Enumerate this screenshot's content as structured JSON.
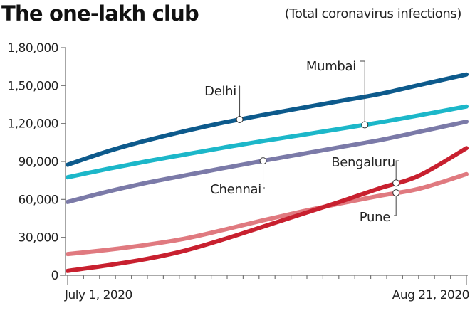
{
  "header": {
    "title": "The one-lakh club",
    "subtitle": "(Total coronavirus infections)"
  },
  "chart_data": {
    "type": "line",
    "title": "The one-lakh club",
    "subtitle": "(Total coronavirus infections)",
    "xlabel": "",
    "ylabel": "",
    "x_start_label": "July 1, 2020",
    "x_end_label": "Aug 21, 2020",
    "x_days": 51,
    "x_minor_tick_count": 26,
    "ylim": [
      0,
      180000
    ],
    "y_ticks": [
      0,
      30000,
      60000,
      90000,
      120000,
      150000,
      180000
    ],
    "y_tick_labels": [
      "0",
      "30,000",
      "60,000",
      "90,000",
      "1,20,000",
      "1,50,000",
      "1,80,000"
    ],
    "grid": false,
    "x": [
      0,
      5,
      10,
      15,
      20,
      25,
      30,
      35,
      40,
      45,
      51
    ],
    "series": [
      {
        "name": "Delhi",
        "color": "#0d5a8c",
        "values": [
          87400,
          97800,
          106500,
          114000,
          120800,
          126800,
          132400,
          138000,
          143500,
          150500,
          158800
        ],
        "marker_day": 22
      },
      {
        "name": "Mumbai",
        "color": "#1cb7c9",
        "values": [
          77500,
          84000,
          90000,
          95500,
          101000,
          106200,
          111000,
          116000,
          121000,
          126500,
          133500
        ],
        "marker_day": 38
      },
      {
        "name": "Chennai",
        "color": "#7b7aa8",
        "values": [
          58000,
          66000,
          73000,
          79000,
          84800,
          90500,
          96000,
          101500,
          107000,
          113500,
          121500
        ],
        "marker_day": 25
      },
      {
        "name": "Bengaluru",
        "color": "#c8202f",
        "values": [
          3500,
          7800,
          12800,
          19500,
          28500,
          38500,
          48500,
          58500,
          69000,
          79000,
          100500
        ],
        "marker_day": 42
      },
      {
        "name": "Pune",
        "color": "#e07a80",
        "values": [
          16800,
          20000,
          24000,
          29000,
          36000,
          43500,
          50500,
          57000,
          63000,
          68500,
          80000
        ],
        "marker_day": 42
      }
    ]
  }
}
